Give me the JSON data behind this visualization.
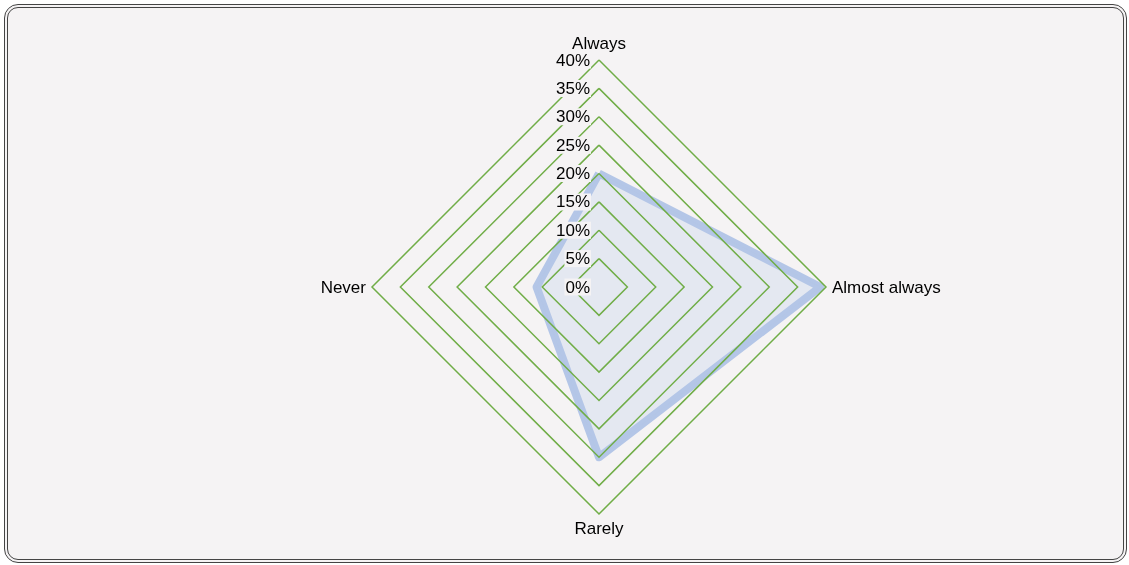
{
  "chart_data": {
    "type": "radar",
    "categories": [
      "Always",
      "Almost always",
      "Rarely",
      "Never"
    ],
    "series": [
      {
        "color": "#b4c6e7",
        "values": [
          20,
          39,
          30,
          11
        ]
      }
    ],
    "ylim": [
      0,
      40
    ],
    "yticks": [
      {
        "value": 0,
        "label": "0%"
      },
      {
        "value": 5,
        "label": "5%"
      },
      {
        "value": 10,
        "label": "10%"
      },
      {
        "value": 15,
        "label": "15%"
      },
      {
        "value": 20,
        "label": "20%"
      },
      {
        "value": 25,
        "label": "25%"
      },
      {
        "value": 30,
        "label": "30%"
      },
      {
        "value": 35,
        "label": "35%"
      },
      {
        "value": 40,
        "label": "40%"
      }
    ],
    "grid": true
  }
}
